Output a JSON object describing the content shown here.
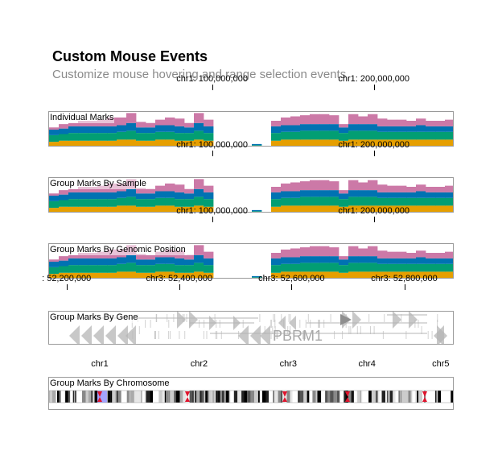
{
  "header": {
    "title": "Custom Mouse Events",
    "subtitle": "Customize mouse hovering and range selection events"
  },
  "colors": {
    "series": [
      "#e69f00",
      "#029e73",
      "#0072b2",
      "#cc79a7"
    ],
    "gene": "#b5b5b5",
    "ideogram_highlight": "#a3a3ff",
    "centromere": "#e0142d"
  },
  "genome_axis": {
    "ticks": [
      {
        "label": "chr1: 100,000,000",
        "pos": 0.404
      },
      {
        "label": "chr1: 200,000,000",
        "pos": 0.803
      }
    ]
  },
  "tracks": [
    {
      "label": "Individual Marks"
    },
    {
      "label": "Group Marks By Sample"
    },
    {
      "label": "Group Marks By Genomic Position"
    }
  ],
  "chart_data": {
    "type": "area",
    "series": [
      {
        "name": "",
        "values": [
          5,
          6,
          6,
          6,
          6,
          6,
          6,
          7,
          7,
          6,
          6,
          7,
          7,
          6,
          6,
          7,
          6,
          0,
          0,
          0,
          0,
          1,
          0,
          6,
          7,
          7,
          7,
          7,
          7,
          7,
          6,
          7,
          7,
          7,
          7,
          7,
          7,
          7,
          7,
          7,
          7,
          7
        ]
      },
      {
        "name": "",
        "values": [
          6,
          6,
          7,
          7,
          7,
          7,
          7,
          7,
          8,
          7,
          7,
          7,
          7,
          7,
          7,
          8,
          7,
          0,
          0,
          0,
          0,
          1,
          0,
          7,
          7,
          7,
          8,
          8,
          8,
          8,
          7,
          8,
          8,
          8,
          7,
          7,
          7,
          7,
          7,
          7,
          7,
          7
        ]
      },
      {
        "name": "",
        "values": [
          5,
          5,
          6,
          6,
          6,
          6,
          6,
          6,
          7,
          5,
          5,
          6,
          6,
          6,
          5,
          7,
          6,
          0,
          0,
          0,
          0,
          1,
          0,
          6,
          6,
          6,
          6,
          6,
          6,
          6,
          5,
          6,
          6,
          6,
          5,
          5,
          5,
          5,
          6,
          5,
          5,
          5
        ]
      },
      {
        "name": "",
        "values": [
          2,
          4,
          3,
          5,
          5,
          6,
          8,
          7,
          9,
          5,
          4,
          5,
          7,
          7,
          4,
          9,
          6,
          0,
          0,
          0,
          0,
          0,
          0,
          5,
          7,
          8,
          8,
          9,
          9,
          8,
          3,
          9,
          7,
          9,
          7,
          6,
          6,
          5,
          6,
          5,
          5,
          6
        ]
      }
    ],
    "ymax": 32
  },
  "gene_view": {
    "label": "Group Marks By Gene",
    "gene_name": "PBRM1",
    "ticks": [
      {
        "label": ": 52,200,000",
        "pos": 0.045
      },
      {
        "label": "chr3: 52,400,000",
        "pos": 0.323
      },
      {
        "label": "chr3: 52,600,000",
        "pos": 0.6
      },
      {
        "label": "chr3: 52,800,000",
        "pos": 0.878
      }
    ]
  },
  "chromosome_view": {
    "label": "Group Marks By Chromosome",
    "chromosomes": [
      {
        "label": "chr1",
        "pos": 0.127
      },
      {
        "label": "chr2",
        "pos": 0.372
      },
      {
        "label": "chr3",
        "pos": 0.592
      },
      {
        "label": "chr4",
        "pos": 0.786
      },
      {
        "label": "chr5",
        "pos": 0.968
      }
    ]
  }
}
